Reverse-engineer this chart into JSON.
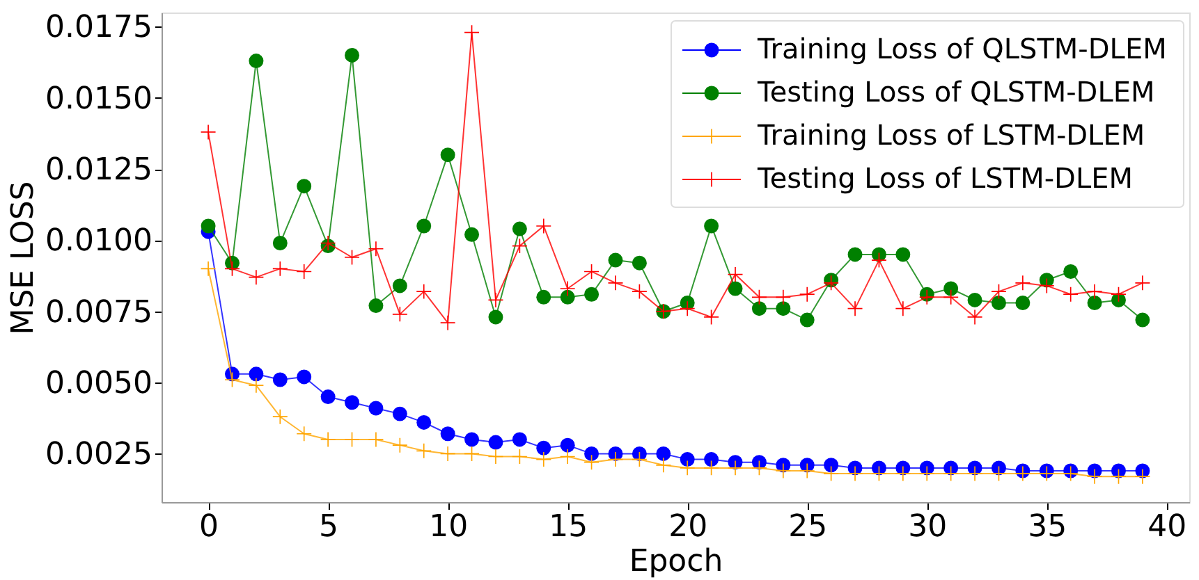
{
  "chart_data": {
    "type": "line",
    "xlabel": "Epoch",
    "ylabel": "MSE LOSS",
    "x": [
      0,
      1,
      2,
      3,
      4,
      5,
      6,
      7,
      8,
      9,
      10,
      11,
      12,
      13,
      14,
      15,
      16,
      17,
      18,
      19,
      20,
      21,
      22,
      23,
      24,
      25,
      26,
      27,
      28,
      29,
      30,
      31,
      32,
      33,
      34,
      35,
      36,
      37,
      38,
      39
    ],
    "series": [
      {
        "name": "Training Loss of QLSTM-DLEM",
        "color": "#0000ff",
        "marker": "circle",
        "values": [
          0.0103,
          0.0053,
          0.0053,
          0.0051,
          0.0052,
          0.0045,
          0.0043,
          0.0041,
          0.0039,
          0.0036,
          0.0032,
          0.003,
          0.0029,
          0.003,
          0.0027,
          0.0028,
          0.0025,
          0.0025,
          0.0025,
          0.0025,
          0.0023,
          0.0023,
          0.0022,
          0.0022,
          0.0021,
          0.0021,
          0.0021,
          0.002,
          0.002,
          0.002,
          0.002,
          0.002,
          0.002,
          0.002,
          0.0019,
          0.0019,
          0.0019,
          0.0019,
          0.0019,
          0.0019
        ]
      },
      {
        "name": "Testing Loss of QLSTM-DLEM",
        "color": "#008000",
        "marker": "circle",
        "values": [
          0.0105,
          0.0092,
          0.0163,
          0.0099,
          0.0119,
          0.0098,
          0.0165,
          0.0077,
          0.0084,
          0.0105,
          0.013,
          0.0102,
          0.0073,
          0.0104,
          0.008,
          0.008,
          0.0081,
          0.0093,
          0.0092,
          0.0075,
          0.0078,
          0.0105,
          0.0083,
          0.0076,
          0.0076,
          0.0072,
          0.0086,
          0.0095,
          0.0095,
          0.0095,
          0.0081,
          0.0083,
          0.0079,
          0.0078,
          0.0078,
          0.0086,
          0.0089,
          0.0078,
          0.0079,
          0.0072
        ]
      },
      {
        "name": "Training Loss of LSTM-DLEM",
        "color": "#ffa500",
        "marker": "cross",
        "values": [
          0.009,
          0.0051,
          0.0049,
          0.0038,
          0.0032,
          0.003,
          0.003,
          0.003,
          0.0028,
          0.0026,
          0.0025,
          0.0025,
          0.0024,
          0.0024,
          0.0023,
          0.0024,
          0.0022,
          0.0023,
          0.0023,
          0.0021,
          0.002,
          0.002,
          0.002,
          0.002,
          0.0019,
          0.0019,
          0.0018,
          0.0018,
          0.0018,
          0.0018,
          0.0018,
          0.0018,
          0.0018,
          0.0018,
          0.0018,
          0.0018,
          0.0018,
          0.0017,
          0.0017,
          0.0017
        ]
      },
      {
        "name": "Testing Loss of LSTM-DLEM",
        "color": "#ff0000",
        "marker": "cross",
        "values": [
          0.0138,
          0.009,
          0.0087,
          0.009,
          0.0089,
          0.0099,
          0.0094,
          0.0097,
          0.0074,
          0.0082,
          0.0071,
          0.0173,
          0.0079,
          0.0098,
          0.0105,
          0.0083,
          0.0089,
          0.0085,
          0.0082,
          0.0075,
          0.0076,
          0.0073,
          0.0088,
          0.008,
          0.008,
          0.0081,
          0.0085,
          0.0076,
          0.0093,
          0.0076,
          0.008,
          0.008,
          0.0073,
          0.0082,
          0.0085,
          0.0084,
          0.0081,
          0.0082,
          0.0081,
          0.0085
        ]
      }
    ],
    "xlim": [
      -1.95,
      40.95
    ],
    "ylim": [
      0.0008,
      0.018
    ],
    "xticks": [
      0,
      5,
      10,
      15,
      20,
      25,
      30,
      35,
      40
    ],
    "yticks": [
      0.0025,
      {
        "value": 0.005,
        "label": "0.0050"
      },
      0.0075,
      {
        "value": 0.01,
        "label": "0.0100"
      },
      0.0125,
      {
        "value": 0.015,
        "label": "0.0150"
      },
      0.0175
    ],
    "legend": "top right",
    "grid": false
  }
}
